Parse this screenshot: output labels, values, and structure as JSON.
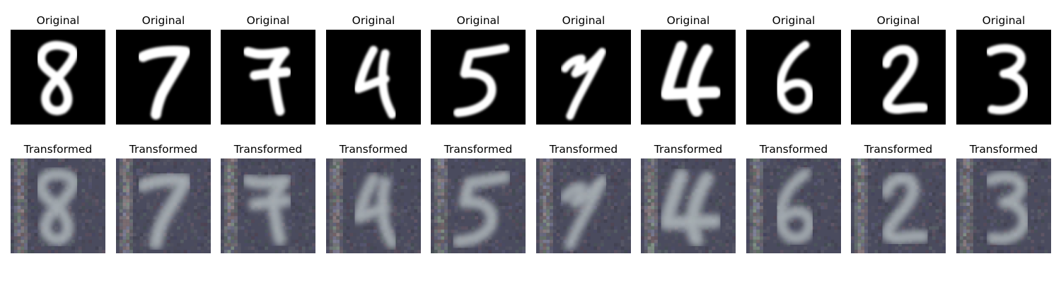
{
  "figure": {
    "rows": [
      {
        "title": "Original",
        "style": "original",
        "digits": [
          "8",
          "7",
          "7",
          "4",
          "5",
          "7",
          "4",
          "6",
          "2",
          "3"
        ]
      },
      {
        "title": "Transformed",
        "style": "transformed",
        "digits": [
          "8",
          "7",
          "7",
          "4",
          "5",
          "7",
          "4",
          "6",
          "2",
          "3"
        ]
      }
    ],
    "colors": {
      "original_background": "#000000",
      "original_stroke": "#ffffff",
      "transformed_background": "#4a4b5e",
      "transformed_stroke": "#b9c2c4"
    }
  }
}
